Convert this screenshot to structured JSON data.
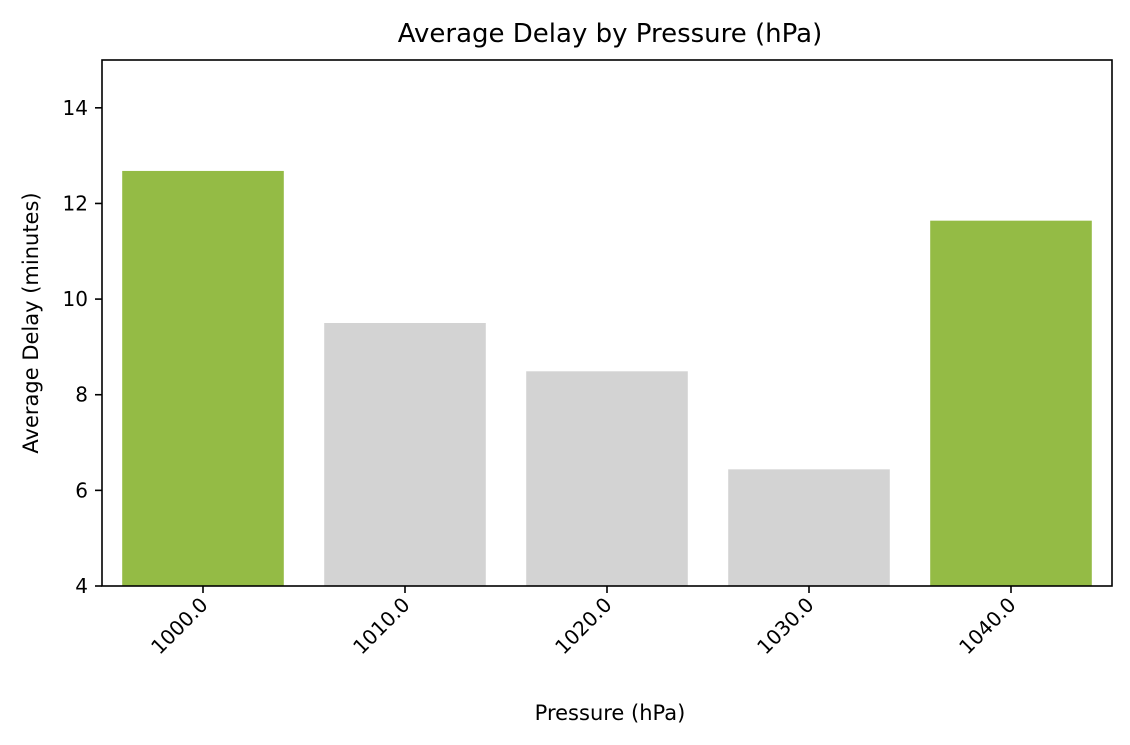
{
  "chart_data": {
    "type": "bar",
    "title": "Average Delay by Pressure (hPa)",
    "xlabel": "Pressure (hPa)",
    "ylabel": "Average Delay (minutes)",
    "categories": [
      "1000.0",
      "1010.0",
      "1020.0",
      "1030.0",
      "1040.0"
    ],
    "values": [
      12.68,
      9.5,
      8.49,
      6.44,
      11.64
    ],
    "ylim": [
      4,
      15
    ],
    "yticks": [
      4,
      6,
      8,
      10,
      12,
      14
    ],
    "grid": false,
    "colors": {
      "highlight": "#94bb45",
      "default": "#d3d3d3",
      "axis": "#000000"
    },
    "highlighted": [
      "1000.0",
      "1040.0"
    ]
  }
}
